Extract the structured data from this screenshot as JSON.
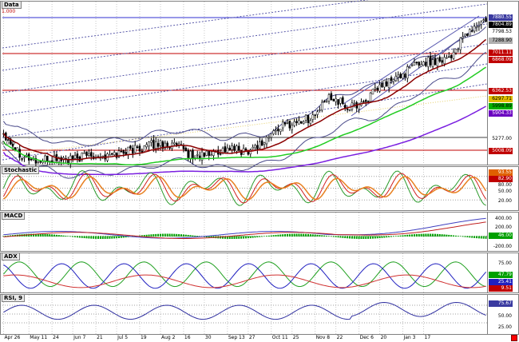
{
  "panes": {
    "price_label": "Data",
    "stochastic_label": "Stochastic",
    "macd_label": "MACD",
    "adx_label": "ADX",
    "rsi_label": "RSI, 9"
  },
  "price_axis": {
    "fib_label": "1.000",
    "fib_label_low": "0.000",
    "labels": [
      {
        "text": "7880.55",
        "bg": "#3a3aa0",
        "color": "#ffffff"
      },
      {
        "text": "7804.89",
        "bg": "#000000",
        "color": "#ffffff"
      },
      {
        "text": "7798.53",
        "bg": "#ffffff",
        "color": "#000000"
      },
      {
        "text": "7288.90",
        "bg": "#b0b0b0",
        "color": "#000000"
      },
      {
        "text": "7011.11",
        "bg": "#c00000",
        "color": "#ffffff"
      },
      {
        "text": "6868.09",
        "bg": "#c00000",
        "color": "#ffffff"
      },
      {
        "text": "6362.53",
        "bg": "#c00000",
        "color": "#ffffff"
      },
      {
        "text": "6297.71",
        "bg": "#e0c000",
        "color": "#000000"
      },
      {
        "text": "5998.89",
        "bg": "#00b000",
        "color": "#000000"
      },
      {
        "text": "5904.33",
        "bg": "#6a00c0",
        "color": "#ffffff"
      },
      {
        "text": "5277.00",
        "bg": "#ffffff",
        "color": "#000000"
      },
      {
        "text": "5008.09",
        "bg": "#c00000",
        "color": "#ffffff"
      }
    ]
  },
  "stochastic_axis": [
    {
      "text": "93.55",
      "bg": "#e06000",
      "color": "#ffffff"
    },
    {
      "text": "82.90",
      "bg": "#c00000",
      "color": "#ffffff"
    },
    {
      "text": "80.00",
      "bg": "#ffffff",
      "color": "#000000"
    },
    {
      "text": "50.00",
      "bg": "#ffffff",
      "color": "#000000"
    },
    {
      "text": "20.00",
      "bg": "#ffffff",
      "color": "#000000"
    }
  ],
  "macd_axis": [
    {
      "text": "400.00",
      "bg": "#ffffff",
      "color": "#000000"
    },
    {
      "text": "200.00",
      "bg": "#ffffff",
      "color": "#000000"
    },
    {
      "text": "46.00",
      "bg": "#00a000",
      "color": "#ffffff"
    },
    {
      "text": "-200.00",
      "bg": "#ffffff",
      "color": "#000000"
    }
  ],
  "adx_axis": [
    {
      "text": "75.00",
      "bg": "#ffffff",
      "color": "#000000"
    },
    {
      "text": "47.79",
      "bg": "#00a000",
      "color": "#ffffff"
    },
    {
      "text": "25.41",
      "bg": "#2020c0",
      "color": "#ffffff"
    },
    {
      "text": "9.51",
      "bg": "#c00000",
      "color": "#ffffff"
    }
  ],
  "rsi_axis": [
    {
      "text": "75.67",
      "bg": "#3a3aa0",
      "color": "#ffffff"
    },
    {
      "text": "50.00",
      "bg": "#ffffff",
      "color": "#000000"
    },
    {
      "text": "25.00",
      "bg": "#ffffff",
      "color": "#000000"
    }
  ],
  "time_axis": [
    "Apr 26",
    "May 11",
    "24",
    "Jun 7",
    "21",
    "Jul 5",
    "19",
    "Aug 2",
    "16",
    "30",
    "Sep 13",
    "27",
    "Oct 11",
    "25",
    "Nov 8",
    "22",
    "Dec 6",
    "20",
    "Jan 3",
    "17"
  ],
  "chart_data": {
    "type": "candlestick",
    "price_range": [
      5000,
      8000
    ],
    "close_anchors": [
      5600,
      5200,
      5050,
      5120,
      5080,
      5200,
      5150,
      5250,
      5320,
      5400,
      5350,
      5150,
      5200,
      5300,
      5250,
      5400,
      5700,
      5800,
      5900,
      6300,
      6050,
      6200,
      6500,
      6650,
      6900,
      6950,
      7050,
      7500,
      7700
    ],
    "colors": {
      "upper_band": "#4a4a8a",
      "lower_band": "#4a4a8a",
      "ma_red": "#8b0000",
      "ma_green": "#22cc22",
      "ma_purple": "#7a1fe0",
      "stoch_k": "#2a9a2a",
      "stoch_d": "#d02020",
      "stoch_slow": "#e88020",
      "macd_line": "#4040c0",
      "macd_signal": "#c02020",
      "macd_hist": "#00a000",
      "adx_green": "#20a020",
      "adx_blue": "#2020c0",
      "adx_red": "#d03030",
      "rsi_line": "#3030a0",
      "hline_blue": "#3030d0",
      "hline_red": "#c00000"
    }
  }
}
